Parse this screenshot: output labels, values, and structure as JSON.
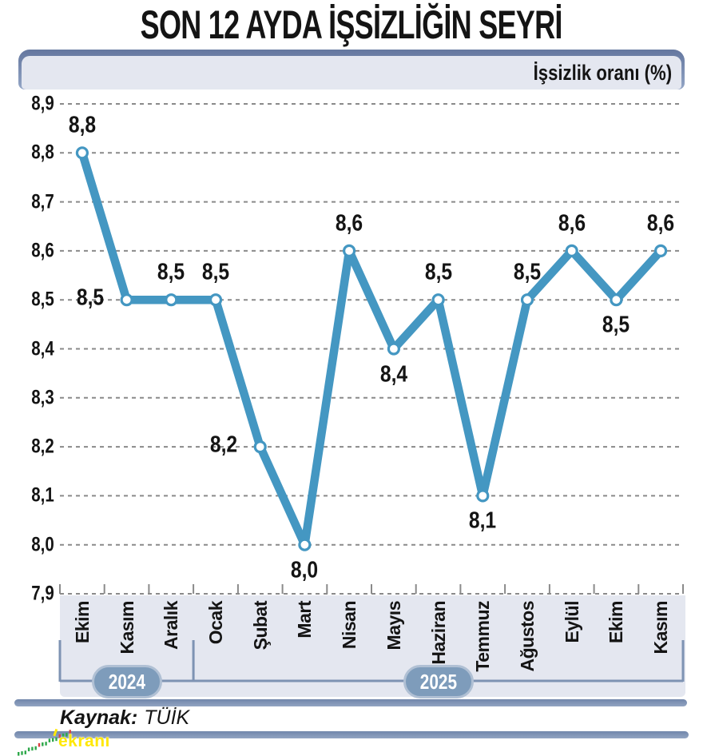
{
  "title": "SON 12 AYDA İŞSİZLİĞİN SEYRİ",
  "header": {
    "panel_label": "İşsizlik oranı (%)"
  },
  "chart_data": {
    "type": "line",
    "title": "SON 12 AYDA İŞSİZLİĞİN SEYRİ",
    "ylabel": "İşsizlik oranı (%)",
    "categories": [
      "Ekim",
      "Kasım",
      "Aralık",
      "Ocak",
      "Şubat",
      "Mart",
      "Nisan",
      "Mayıs",
      "Haziran",
      "Temmuz",
      "Ağustos",
      "Eylül",
      "Ekim",
      "Kasım"
    ],
    "values": [
      8.8,
      8.5,
      8.5,
      8.5,
      8.2,
      8.0,
      8.6,
      8.4,
      8.5,
      8.1,
      8.5,
      8.6,
      8.5,
      8.6
    ],
    "point_labels": [
      "8,8",
      "8,5",
      "8,5",
      "8,5",
      "8,2",
      "8,0",
      "8,6",
      "8,4",
      "8,5",
      "8,1",
      "8,5",
      "8,6",
      "8,5",
      "8,6"
    ],
    "label_placement": [
      "above",
      "left",
      "above",
      "above",
      "left",
      "below",
      "above",
      "below",
      "above",
      "below",
      "above",
      "above",
      "below",
      "above"
    ],
    "ylim": [
      7.9,
      8.9
    ],
    "ytick_step": 0.1,
    "ytick_labels": [
      "8,9",
      "8,8",
      "8,7",
      "8,6",
      "8,5",
      "8,4",
      "8,3",
      "8,2",
      "8,1",
      "8,0",
      "7,9"
    ],
    "grid": "horizontal-dashed",
    "legend_position": "none",
    "year_groups": [
      {
        "label": "2024",
        "month_count": 3
      },
      {
        "label": "2025",
        "month_count": 11
      }
    ]
  },
  "footer": {
    "source_prefix": "Kaynak:",
    "source_value": "TÜİK"
  },
  "watermark": {
    "text": "ekranı",
    "icon": "candlestick-sparkline"
  },
  "colors": {
    "line": "#4497c2",
    "marker_fill": "#ffffff",
    "grid": "#8a8a8a",
    "bracket": "#7e93b3",
    "pill_fill": "#7e9cbb",
    "pill_border": "#b0c0d4",
    "band_bg": "#e4e7f0",
    "bar_dark": "#7186ab",
    "bar_light": "#92a4c2",
    "watermark_yellow": "#ffe808",
    "watermark_green": "#2ea84a",
    "watermark_red": "#d84040",
    "text": "#141414"
  }
}
